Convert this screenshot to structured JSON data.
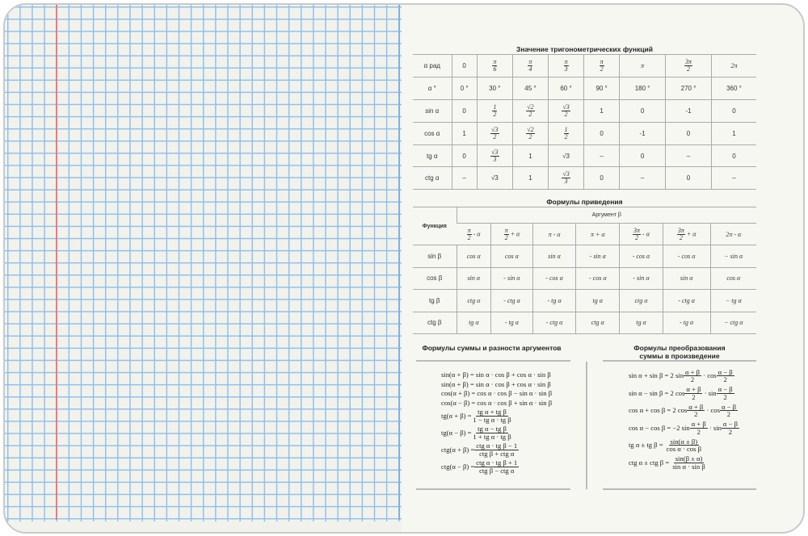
{
  "trig_values": {
    "title": "Значение тригонометрических функций",
    "rows": [
      {
        "label": "α рад",
        "cells": [
          "0",
          {
            "n": "π",
            "d": "6"
          },
          {
            "n": "π",
            "d": "4"
          },
          {
            "n": "π",
            "d": "3"
          },
          {
            "n": "π",
            "d": "2"
          },
          "π",
          {
            "n": "3π",
            "d": "2"
          },
          "2π"
        ]
      },
      {
        "label": "α °",
        "cells": [
          "0 °",
          "30 °",
          "45 °",
          "60 °",
          "90 °",
          "180 °",
          "270 °",
          "360 °"
        ]
      },
      {
        "label": "sin α",
        "cells": [
          "0",
          {
            "n": "1",
            "d": "2"
          },
          {
            "n": "√2",
            "d": "2"
          },
          {
            "n": "√3",
            "d": "2"
          },
          "1",
          "0",
          "-1",
          "0"
        ]
      },
      {
        "label": "cos α",
        "cells": [
          "1",
          {
            "n": "√3",
            "d": "2"
          },
          {
            "n": "√2",
            "d": "2"
          },
          {
            "n": "1",
            "d": "2"
          },
          "0",
          "-1",
          "0",
          "1"
        ]
      },
      {
        "label": "tg α",
        "cells": [
          "0",
          {
            "n": "√3",
            "d": "3"
          },
          "1",
          "√3",
          "–",
          "0",
          "–",
          "0"
        ]
      },
      {
        "label": "ctg α",
        "cells": [
          "–",
          "√3",
          "1",
          {
            "n": "√3",
            "d": "3"
          },
          "0",
          "–",
          "0",
          "–"
        ]
      }
    ]
  },
  "reduction": {
    "title": "Формулы приведения",
    "func_header": "Функция",
    "arg_header": "Аргумент β",
    "args": [
      {
        "n": "π",
        "d": "2",
        "t": " - α"
      },
      {
        "n": "π",
        "d": "2",
        "t": " + α"
      },
      "π - α",
      "π + α",
      {
        "n": "3π",
        "d": "2",
        "t": " - α"
      },
      {
        "n": "3π",
        "d": "2",
        "t": " + α"
      },
      "2π - α"
    ],
    "rows": [
      {
        "label": "sin β",
        "cells": [
          "cos α",
          "cos α",
          "sin α",
          "- sin α",
          "- cos α",
          "- cos α",
          "− sin α"
        ]
      },
      {
        "label": "cos β",
        "cells": [
          "sin α",
          "- sin α",
          "- cos α",
          "- cos α",
          "- sin α",
          "sin α",
          "cos α"
        ]
      },
      {
        "label": "tg β",
        "cells": [
          "ctg α",
          "- ctg α",
          "- tg α",
          "tg α",
          "ctg α",
          "- ctg α",
          "− tg α"
        ]
      },
      {
        "label": "ctg β",
        "cells": [
          "tg α",
          "- tg α",
          "- ctg α",
          "ctg α",
          "tg α",
          "- tg α",
          "− ctg α"
        ]
      }
    ]
  },
  "sum_diff": {
    "title": "Формулы суммы и разности аргументов",
    "formulas": [
      {
        "text": "sin(α + β) = sin α · cos β + cos α · sin β"
      },
      {
        "text": "sin(α + β) = sin α · cos β + cos α · sin β"
      },
      {
        "text": "cos(α + β) = cos α · cos β − sin α · sin β"
      },
      {
        "text": "cos(α − β) = cos α · cos β + sin α · sin β"
      },
      {
        "lhs": "tg(α + β) = ",
        "n": "tg α + tg β",
        "d": "1 − tg α · tg β"
      },
      {
        "lhs": "tg(α − β) = ",
        "n": "tg α − tg β",
        "d": "1 + tg α · tg β"
      },
      {
        "lhs": "ctg(α + β) = ",
        "n": "ctg α · tg β − 1",
        "d": "ctg β + ctg α"
      },
      {
        "lhs": "ctg(α − β) = ",
        "n": "ctg α · tg β + 1",
        "d": "ctg β − ctg α"
      }
    ]
  },
  "sum_product": {
    "title_line1": "Формулы преобразования",
    "title_line2": "суммы в произведение",
    "formulas": [
      {
        "parts": [
          "sin α + sin β = 2 sin",
          {
            "n": "α + β",
            "d": "2"
          },
          " · cos",
          {
            "n": "α − β",
            "d": "2"
          }
        ]
      },
      {
        "parts": [
          "sin α − sin β = 2 cos",
          {
            "n": "α + β",
            "d": "2"
          },
          " · sin",
          {
            "n": "α − β",
            "d": "2"
          }
        ]
      },
      {
        "parts": [
          "cos α + cos β = 2 cos",
          {
            "n": "α + β",
            "d": "2"
          },
          " · cos",
          {
            "n": "α − β",
            "d": "2"
          }
        ]
      },
      {
        "parts": [
          "cos α − cos β = −2 sin",
          {
            "n": "α + β",
            "d": "2"
          },
          " · sin",
          {
            "n": "α − β",
            "d": "2"
          }
        ]
      },
      {
        "parts": [
          "tg α ± tg β = ",
          {
            "n": "sin(α ± β)",
            "d": "cos α · cos β"
          }
        ]
      },
      {
        "parts": [
          "ctg α ± ctg β = ",
          {
            "n": "sin(β ± α)",
            "d": "sin α · sin β"
          }
        ]
      }
    ]
  },
  "colors": {
    "grid": "#8fc0ea",
    "margin_line": "#f0787a",
    "paper": "#f7f7f2"
  }
}
